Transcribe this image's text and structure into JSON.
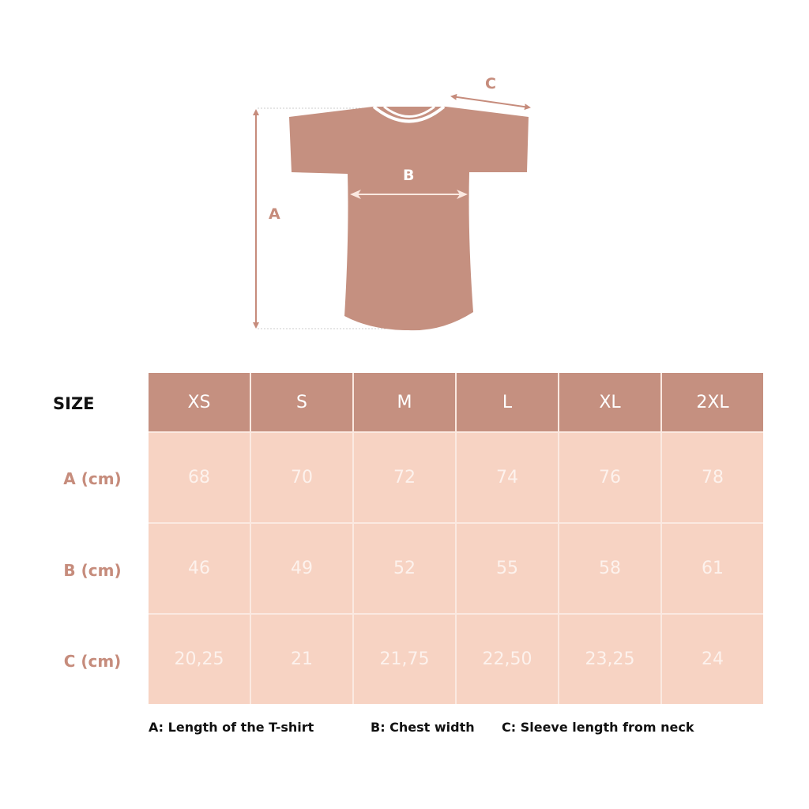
{
  "diagram": {
    "labels": {
      "a": "A",
      "b": "B",
      "c": "C"
    },
    "colors": {
      "garment": "#c59080",
      "header": "#c59080",
      "cell": "#f7d3c3",
      "label_text": "#c68c7c"
    }
  },
  "table": {
    "size_label": "SIZE",
    "sizes": [
      "XS",
      "S",
      "M",
      "L",
      "XL",
      "2XL"
    ],
    "rows": [
      {
        "label": "A (cm)",
        "values": [
          "68",
          "70",
          "72",
          "74",
          "76",
          "78"
        ]
      },
      {
        "label": "B (cm)",
        "values": [
          "46",
          "49",
          "52",
          "55",
          "58",
          "61"
        ]
      },
      {
        "label": "C (cm)",
        "values": [
          "20,25",
          "21",
          "21,75",
          "22,50",
          "23,25",
          "24"
        ]
      }
    ]
  },
  "legend": [
    "A: Length of the T-shirt",
    "B: Chest width",
    "C: Sleeve length from neck"
  ]
}
